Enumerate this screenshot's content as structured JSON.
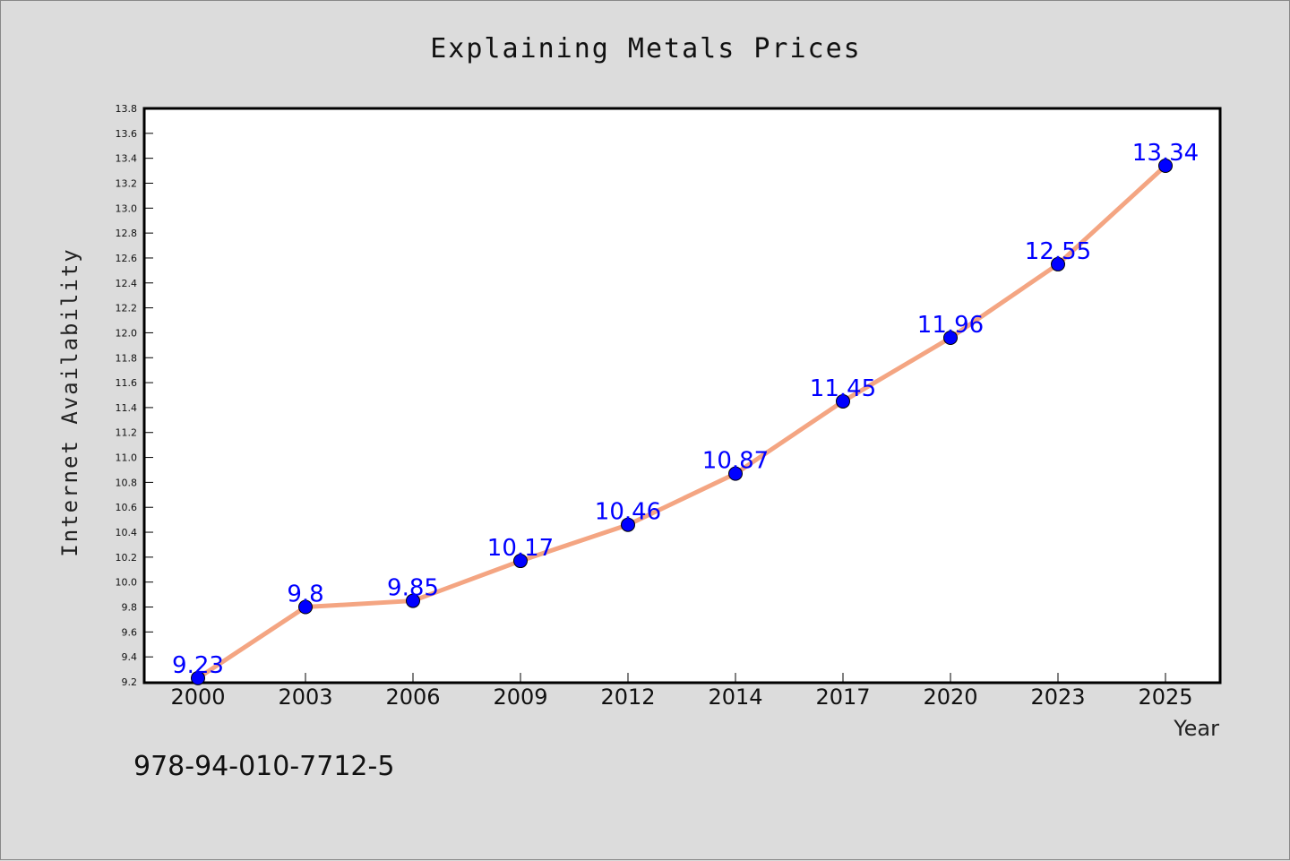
{
  "chart_data": {
    "type": "line",
    "title": "Explaining Metals Prices",
    "xlabel": "Year",
    "ylabel": "Internet Availability",
    "categories": [
      "2000",
      "2003",
      "2006",
      "2009",
      "2012",
      "2014",
      "2017",
      "2020",
      "2023",
      "2025"
    ],
    "series": [
      {
        "values": [
          9.23,
          9.8,
          9.85,
          10.17,
          10.46,
          10.87,
          11.45,
          11.96,
          12.55,
          13.34
        ]
      }
    ],
    "data_labels": [
      "9.23",
      "9.8",
      "9.85",
      "10.17",
      "10.46",
      "10.87",
      "11.45",
      "11.96",
      "12.55",
      "13.34"
    ],
    "ylim": [
      9.2,
      13.8
    ],
    "yticks": [
      "9.2",
      "9.4",
      "9.6",
      "9.8",
      "10.0",
      "10.2",
      "10.4",
      "10.6",
      "10.8",
      "11.0",
      "11.2",
      "11.4",
      "11.6",
      "11.8",
      "12.0",
      "12.2",
      "12.4",
      "12.6",
      "12.8",
      "13.0",
      "13.2",
      "13.4",
      "13.6",
      "13.8"
    ],
    "grid": false,
    "legend": "none",
    "colors": {
      "line": "#f4a582",
      "marker": "#0000ff",
      "marker_edge": "#000000",
      "label": "#0000ff"
    }
  },
  "footnote": "978-94-010-7712-5"
}
